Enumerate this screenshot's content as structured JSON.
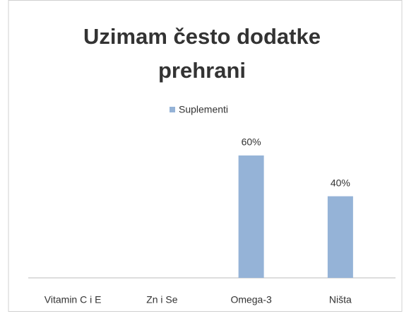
{
  "chart_data": {
    "type": "bar",
    "title": "Uzimam često dodatke prehrani",
    "categories": [
      "Vitamin C i E",
      "Zn i Se",
      "Omega-3",
      "Ništa"
    ],
    "series": [
      {
        "name": "Suplementi",
        "color": "#95b3d7",
        "values": [
          0,
          0,
          60,
          40
        ]
      }
    ],
    "value_labels": [
      null,
      null,
      "60%",
      "40%"
    ],
    "ylim": [
      0,
      70
    ],
    "legend": "top"
  }
}
